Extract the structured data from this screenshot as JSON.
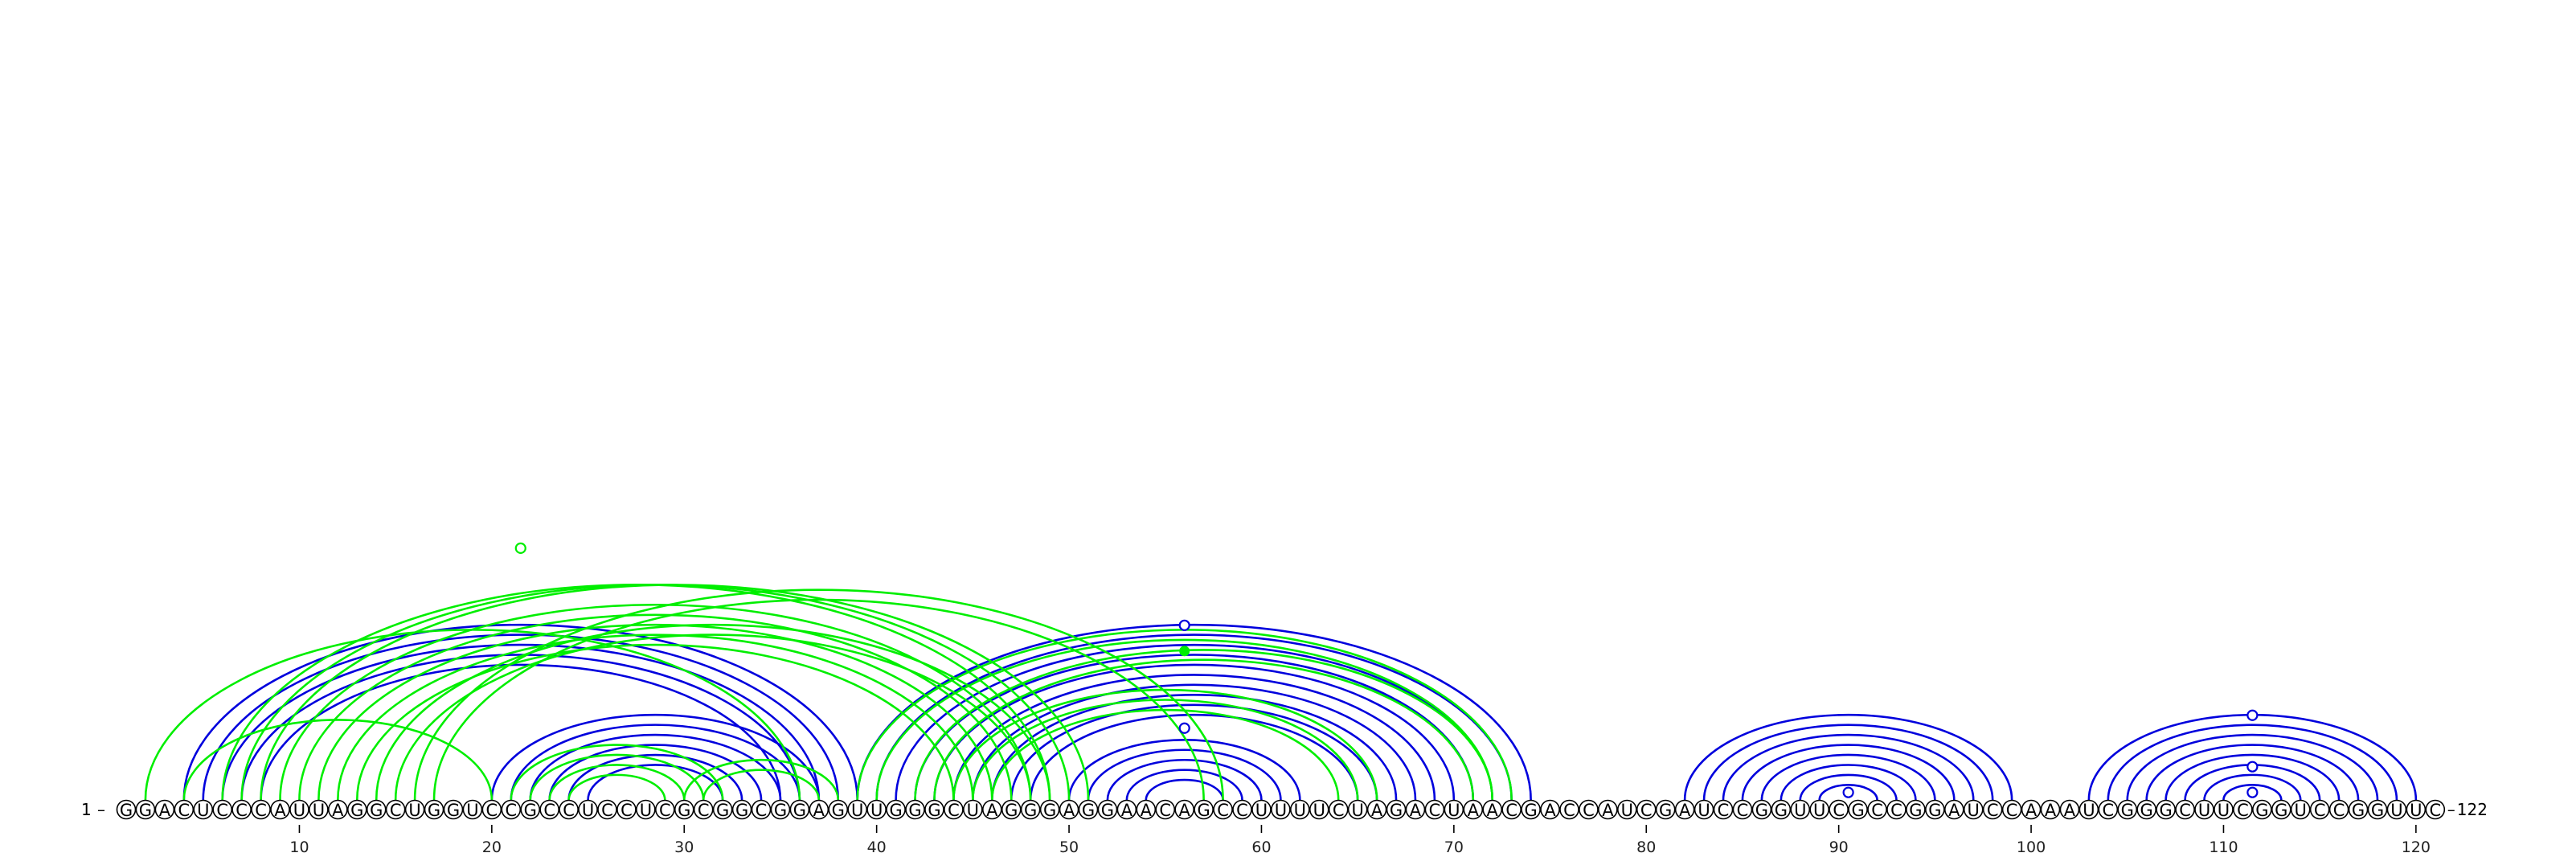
{
  "sequence": "GGACUCCCAUUAGGCUGGUCCGCCUCCUCGCGGCGGAGUUGGGCUAGGGAGGAACAGCCUUUUCUAGACUAACGACCAUCGAUCCGGUUCGCCGGAUCCAAAUCGGGCUUCGGUCCGGUUC",
  "start_label": "1",
  "end_label": "122",
  "tick_labels": [
    "10",
    "20",
    "30",
    "40",
    "50",
    "60",
    "70",
    "80",
    "90",
    "100",
    "110",
    "120"
  ],
  "colors": {
    "blue": "#0000dd",
    "green": "#00ee00"
  },
  "chart_data": {
    "type": "arc-diagram",
    "length": 122,
    "ticks": [
      10,
      20,
      30,
      40,
      50,
      60,
      70,
      80,
      90,
      100,
      110,
      120
    ],
    "blue_pairs": [
      [
        4,
        39
      ],
      [
        5,
        38
      ],
      [
        6,
        37
      ],
      [
        7,
        36
      ],
      [
        8,
        35
      ],
      [
        20,
        37
      ],
      [
        21,
        36
      ],
      [
        22,
        35
      ],
      [
        23,
        34
      ],
      [
        24,
        33
      ],
      [
        25,
        32
      ],
      [
        39,
        74
      ],
      [
        40,
        73
      ],
      [
        41,
        72
      ],
      [
        42,
        71
      ],
      [
        43,
        70
      ],
      [
        44,
        69
      ],
      [
        45,
        68
      ],
      [
        46,
        67
      ],
      [
        47,
        66
      ],
      [
        48,
        65
      ],
      [
        50,
        62
      ],
      [
        51,
        61
      ],
      [
        52,
        60
      ],
      [
        53,
        59
      ],
      [
        54,
        58
      ],
      [
        82,
        99
      ],
      [
        83,
        98
      ],
      [
        84,
        97
      ],
      [
        85,
        96
      ],
      [
        86,
        95
      ],
      [
        87,
        94
      ],
      [
        88,
        93
      ],
      [
        89,
        92
      ],
      [
        103,
        120
      ],
      [
        104,
        119
      ],
      [
        105,
        118
      ],
      [
        106,
        117
      ],
      [
        107,
        116
      ],
      [
        108,
        115
      ],
      [
        109,
        114
      ],
      [
        110,
        113
      ]
    ],
    "green_pairs": [
      [
        2,
        36
      ],
      [
        4,
        20
      ],
      [
        6,
        49
      ],
      [
        7,
        50
      ],
      [
        8,
        51
      ],
      [
        9,
        48
      ],
      [
        14,
        49
      ],
      [
        15,
        48
      ],
      [
        16,
        58
      ],
      [
        17,
        57
      ],
      [
        10,
        47
      ],
      [
        11,
        46
      ],
      [
        12,
        45
      ],
      [
        13,
        44
      ],
      [
        21,
        32
      ],
      [
        22,
        31
      ],
      [
        23,
        30
      ],
      [
        24,
        29
      ],
      [
        30,
        38
      ],
      [
        31,
        37
      ],
      [
        39,
        73
      ],
      [
        40,
        72
      ],
      [
        42,
        72
      ],
      [
        43,
        71
      ],
      [
        44,
        66
      ],
      [
        45,
        65
      ],
      [
        46,
        64
      ]
    ],
    "open_markers": [
      {
        "i": 21.5,
        "j": 21.5,
        "level": 0.305,
        "color": "green"
      },
      {
        "i": 56,
        "j": 56,
        "level": 0.215,
        "color": "blue"
      },
      {
        "i": 56,
        "j": 56,
        "level": 0.095,
        "color": "blue"
      },
      {
        "i": 90.5,
        "j": 90.5,
        "level": 0.02,
        "color": "blue"
      },
      {
        "i": 111.5,
        "j": 111.5,
        "level": 0.11,
        "color": "blue"
      },
      {
        "i": 111.5,
        "j": 111.5,
        "level": 0.05,
        "color": "blue"
      },
      {
        "i": 111.5,
        "j": 111.5,
        "level": 0.02,
        "color": "blue"
      }
    ],
    "filled_markers": [
      {
        "i": 56,
        "j": 56,
        "level": 0.185,
        "color": "green"
      }
    ]
  }
}
